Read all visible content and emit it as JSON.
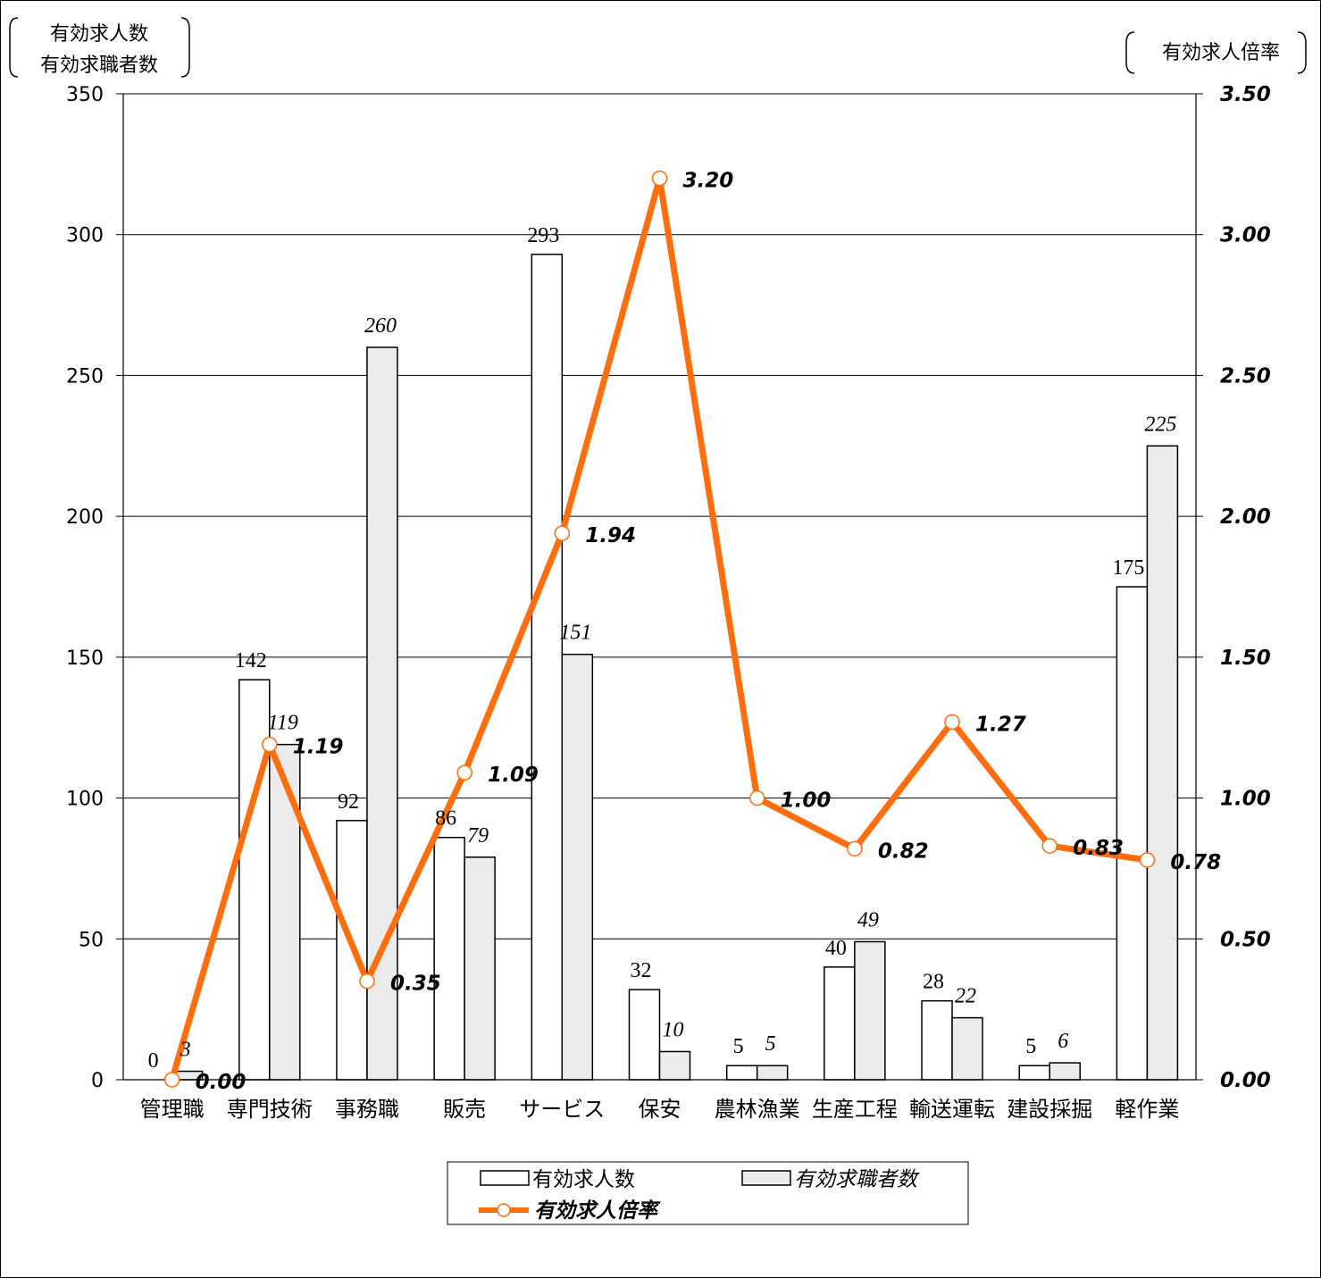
{
  "chart_data": {
    "type": "bar",
    "categories": [
      "管理職",
      "専門技術",
      "事務職",
      "販売",
      "サービス",
      "保安",
      "農林漁業",
      "生産工程",
      "輸送運転",
      "建設採掘",
      "軽作業"
    ],
    "series": [
      {
        "name": "有効求人数",
        "kind": "bar",
        "axis": "left",
        "color": "#ffffff",
        "values": [
          0,
          142,
          92,
          86,
          293,
          32,
          5,
          40,
          28,
          5,
          175
        ]
      },
      {
        "name": "有効求職者数",
        "kind": "bar",
        "axis": "left",
        "color": "#ebebeb",
        "values": [
          3,
          119,
          260,
          79,
          151,
          10,
          5,
          49,
          22,
          6,
          225
        ]
      },
      {
        "name": "有効求人倍率",
        "kind": "line",
        "axis": "right",
        "color": "#ff6d0d",
        "values": [
          0.0,
          1.19,
          0.35,
          1.09,
          1.94,
          3.2,
          1.0,
          0.82,
          1.27,
          0.83,
          0.78
        ]
      }
    ],
    "ratio_labels": [
      "0.00",
      "1.19",
      "0.35",
      "1.09",
      "1.94",
      "3.20",
      "1.00",
      "0.82",
      "1.27",
      "0.83",
      "0.78"
    ],
    "left_axis": {
      "title_lines": [
        "有効求人数",
        "有効求職者数"
      ],
      "ylim": [
        0,
        350
      ],
      "ticks": [
        0,
        50,
        100,
        150,
        200,
        250,
        300,
        350
      ],
      "tick_labels": [
        "0",
        "50",
        "100",
        "150",
        "200",
        "250",
        "300",
        "350"
      ]
    },
    "right_axis": {
      "title": "有効求人倍率",
      "ylim": [
        0,
        3.5
      ],
      "ticks": [
        0,
        0.5,
        1,
        1.5,
        2,
        2.5,
        3,
        3.5
      ],
      "tick_labels": [
        "0.00",
        "0.50",
        "1.00",
        "1.50",
        "2.00",
        "2.50",
        "3.00",
        "3.50"
      ]
    },
    "grid": true,
    "legend": {
      "position": "bottom",
      "items": [
        "有効求人数",
        "有効求職者数",
        "有効求人倍率"
      ]
    }
  }
}
